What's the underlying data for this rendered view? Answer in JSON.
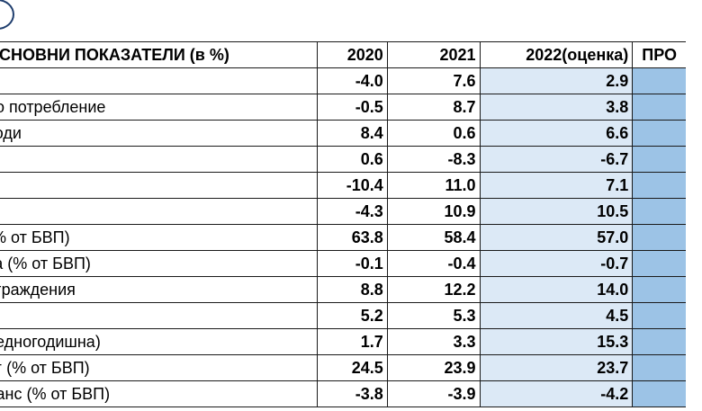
{
  "table": {
    "headers": {
      "label": "ОСНОВНИ ПОКАЗАТЕЛИ (в %)",
      "y2020": "2020",
      "y2021": "2021",
      "y2022": "2022(оценка)",
      "projection": "ПРО"
    },
    "rows": [
      {
        "label": "",
        "v2020": "-4.0",
        "v2021": "7.6",
        "v2022": "2.9"
      },
      {
        "label": "но потребление",
        "v2020": "-0.5",
        "v2021": "8.7",
        "v2022": "3.8"
      },
      {
        "label": "ходи",
        "v2020": "8.4",
        "v2021": "0.6",
        "v2022": "6.6"
      },
      {
        "label": "",
        "v2020": "0.6",
        "v2021": "-8.3",
        "v2022": "-6.7"
      },
      {
        "label": "",
        "v2020": "-10.4",
        "v2021": "11.0",
        "v2022": "7.1"
      },
      {
        "label": "",
        "v2020": "-4.3",
        "v2021": "10.9",
        "v2022": "10.5"
      },
      {
        "label": "(% от БВП)",
        "v2020": "63.8",
        "v2021": "58.4",
        "v2022": "57.0"
      },
      {
        "label": "ка (% от БВП)",
        "v2020": "-0.1",
        "v2021": "-0.4",
        "v2022": "-0.7"
      },
      {
        "label": "аграждения",
        "v2020": "8.8",
        "v2021": "12.2",
        "v2022": "14.0"
      },
      {
        "label": "",
        "v2020": "5.2",
        "v2021": "5.3",
        "v2022": "4.5"
      },
      {
        "label": "редногодишна)",
        "v2020": "1.7",
        "v2021": "3.3",
        "v2022": "15.3"
      },
      {
        "label": "лг (% от БВП)",
        "v2020": "24.5",
        "v2021": "23.9",
        "v2022": "23.7"
      },
      {
        "label": "ланс (% от БВП)",
        "v2020": "-3.8",
        "v2021": "-3.9",
        "v2022": "-4.2"
      }
    ]
  },
  "colors": {
    "estimate_fill": "#dce9f6",
    "projection_fill": "#9cc3e6",
    "badge_stroke": "#1f3e6e"
  }
}
